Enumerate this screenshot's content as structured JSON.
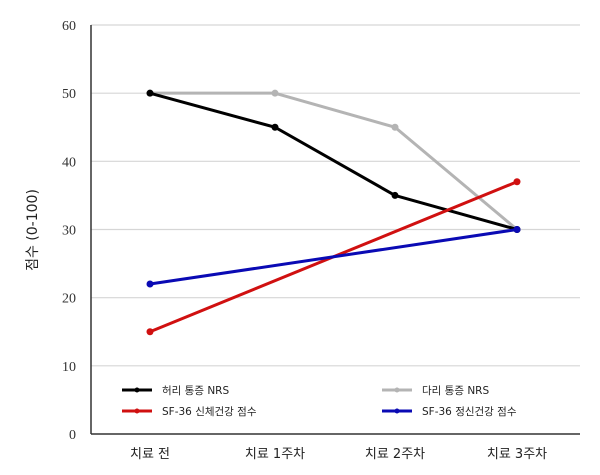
{
  "chart_data": {
    "type": "line",
    "title": "",
    "xlabel": "",
    "ylabel": "점수 (0-100)",
    "ylim": [
      0,
      60
    ],
    "yticks": [
      0,
      10,
      20,
      30,
      40,
      50,
      60
    ],
    "grid": true,
    "legend_position": "inside-bottom",
    "categories": [
      "치료 전",
      "치료 1주차",
      "치료 2주차",
      "치료 3주차"
    ],
    "series": [
      {
        "name": "허리 통증 NRS",
        "color": "#000000",
        "values": [
          50,
          45,
          35,
          30
        ]
      },
      {
        "name": "다리 통증 NRS",
        "color": "#b4b4b4",
        "values": [
          50,
          50,
          45,
          30
        ]
      },
      {
        "name": "SF-36 신체건강 점수",
        "color": "#d01010",
        "values": [
          15,
          null,
          null,
          37
        ]
      },
      {
        "name": "SF-36 정신건강 점수",
        "color": "#0a0ab4",
        "values": [
          22,
          null,
          null,
          30
        ]
      }
    ]
  }
}
